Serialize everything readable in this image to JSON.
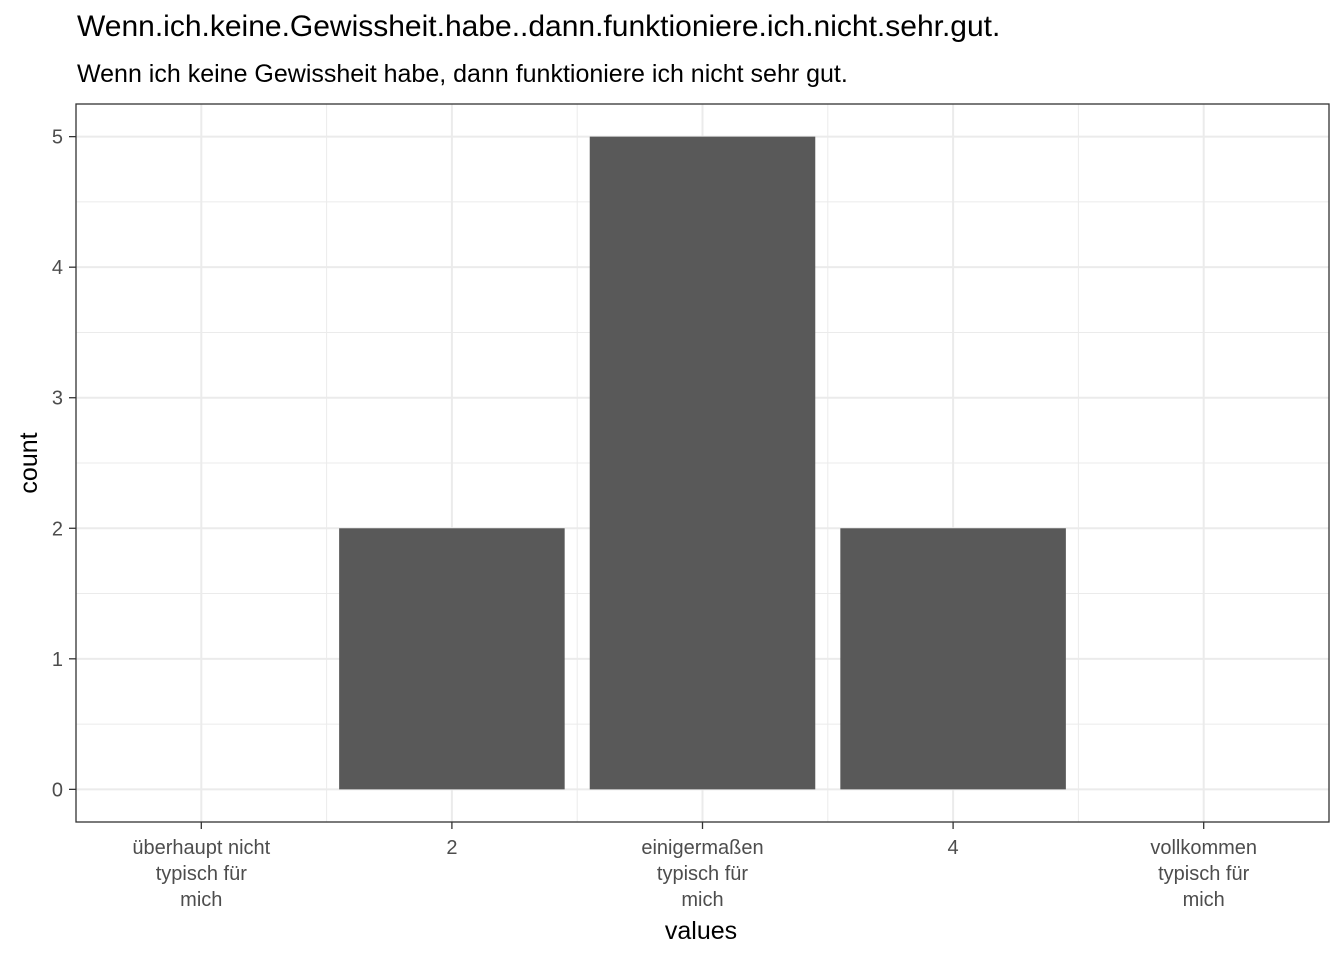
{
  "chart_data": {
    "type": "bar",
    "title": "Wenn.ich.keine.Gewissheit.habe..dann.funktioniere.ich.nicht.sehr.gut.",
    "subtitle": "Wenn ich keine Gewissheit habe, dann funktioniere ich nicht sehr gut.",
    "xlabel": "values",
    "ylabel": "count",
    "categories": [
      [
        "überhaupt nicht",
        "typisch für",
        "mich"
      ],
      [
        "2"
      ],
      [
        "einigermaßen",
        "typisch für",
        "mich"
      ],
      [
        "4"
      ],
      [
        "vollkommen",
        "typisch für",
        "mich"
      ]
    ],
    "values": [
      0,
      2,
      5,
      2,
      0
    ],
    "yticks": [
      0,
      1,
      2,
      3,
      4,
      5
    ],
    "ylim": [
      -0.25,
      5.25
    ],
    "grid": true,
    "bar_color": "#595959",
    "grid_color": "#ebebeb"
  }
}
